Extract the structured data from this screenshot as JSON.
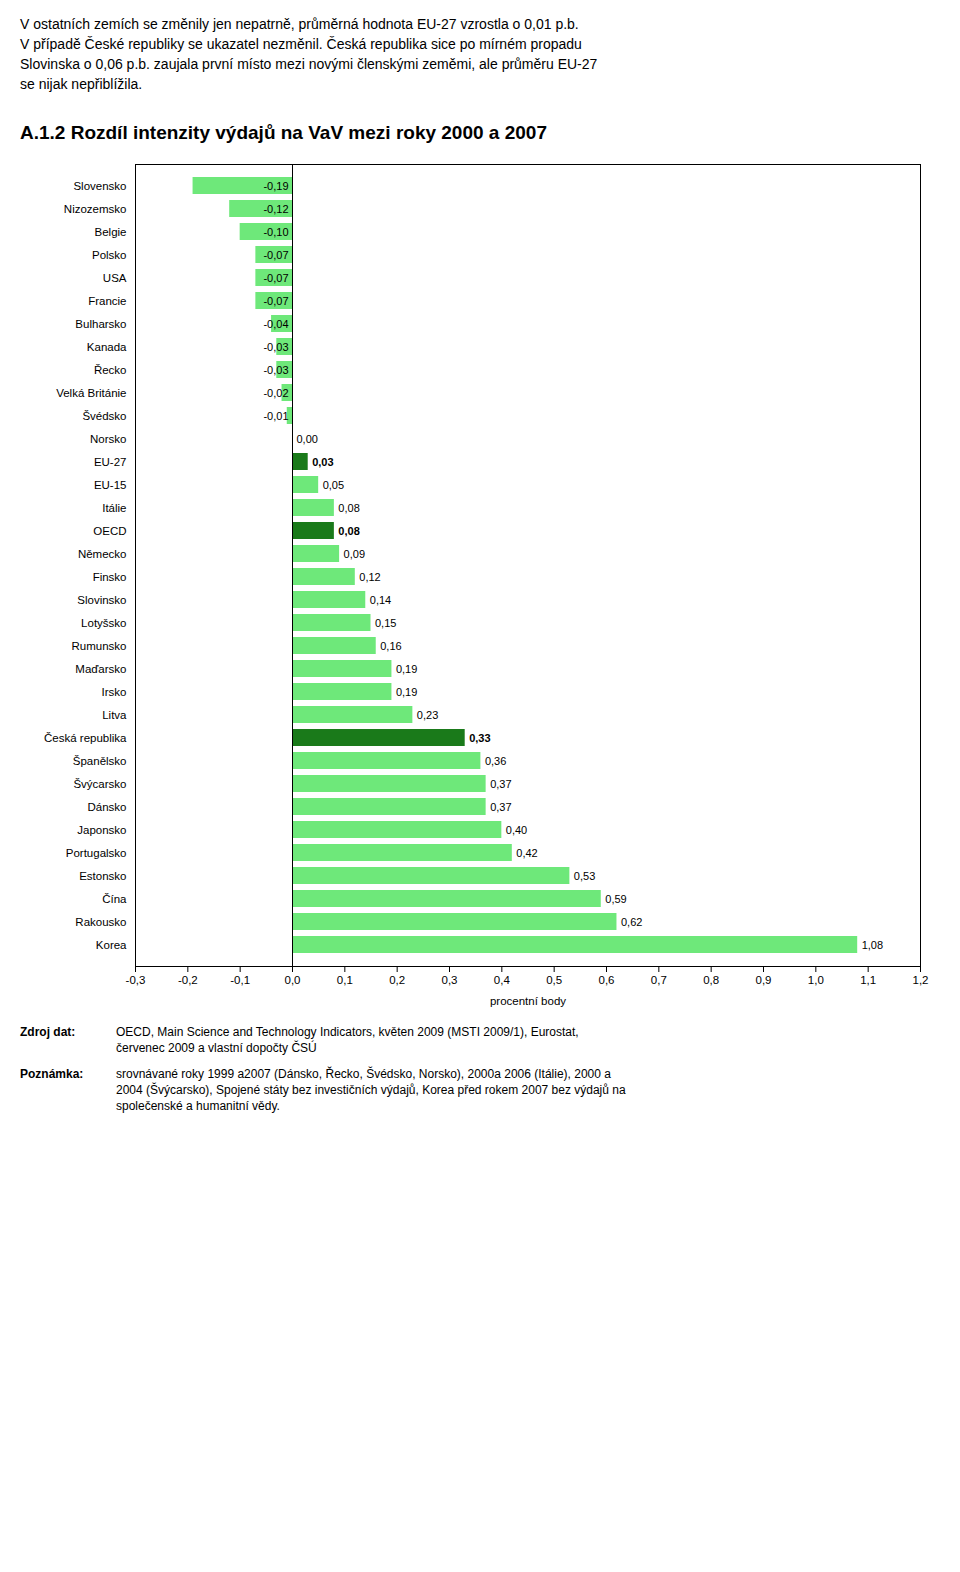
{
  "chart_data": {
    "type": "bar",
    "orientation": "horizontal",
    "title": "A.1.2 Rozdíl intenzity výdajů na VaV mezi roky 2000 a 2007",
    "header_text": [
      "V ostatních zemích se změnily jen nepatrně, průměrná hodnota EU-27 vzrostla o 0,01 p.b.",
      "V případě České republiky se ukazatel nezměnil. Česká republika sice po mírném propadu",
      "Slovinska o 0,06 p.b. zaujala první místo mezi novými členskými zeměmi, ale průměru EU-27",
      "se nijak nepřiblížila."
    ],
    "xlabel": "procentní body",
    "categories": [
      "Slovensko",
      "Nizozemsko",
      "Belgie",
      "Polsko",
      "USA",
      "Francie",
      "Bulharsko",
      "Kanada",
      "Řecko",
      "Velká Británie",
      "Švédsko",
      "Norsko",
      "EU-27",
      "EU-15",
      "Itálie",
      "OECD",
      "Německo",
      "Finsko",
      "Slovinsko",
      "Lotyšsko",
      "Rumunsko",
      "Maďarsko",
      "Irsko",
      "Litva",
      "Česká republika",
      "Španělsko",
      "Švýcarsko",
      "Dánsko",
      "Japonsko",
      "Portugalsko",
      "Estonsko",
      "Čína",
      "Rakousko",
      "Korea"
    ],
    "values": [
      -0.19,
      -0.12,
      -0.1,
      -0.07,
      -0.07,
      -0.07,
      -0.04,
      -0.03,
      -0.03,
      -0.02,
      -0.01,
      0.0,
      0.03,
      0.05,
      0.08,
      0.08,
      0.09,
      0.12,
      0.14,
      0.15,
      0.16,
      0.19,
      0.19,
      0.23,
      0.33,
      0.36,
      0.37,
      0.37,
      0.4,
      0.42,
      0.53,
      0.59,
      0.62,
      1.08
    ],
    "value_labels": [
      "-0,19",
      "-0,12",
      "-0,10",
      "-0,07",
      "-0,07",
      "-0,07",
      "-0,04",
      "-0,03",
      "-0,03",
      "-0,02",
      "-0,01",
      "0,00",
      "0,03",
      "0,05",
      "0,08",
      "0,08",
      "0,09",
      "0,12",
      "0,14",
      "0,15",
      "0,16",
      "0,19",
      "0,19",
      "0,23",
      "0,33",
      "0,36",
      "0,37",
      "0,37",
      "0,40",
      "0,42",
      "0,53",
      "0,59",
      "0,62",
      "1,08"
    ],
    "data_labels": true,
    "colors": [
      "#6EE87A",
      "#6EE87A",
      "#6EE87A",
      "#6EE87A",
      "#6EE87A",
      "#6EE87A",
      "#6EE87A",
      "#6EE87A",
      "#6EE87A",
      "#6EE87A",
      "#6EE87A",
      "#6EE87A",
      "#1A7A1A",
      "#6EE87A",
      "#6EE87A",
      "#1A7A1A",
      "#6EE87A",
      "#6EE87A",
      "#6EE87A",
      "#6EE87A",
      "#6EE87A",
      "#6EE87A",
      "#6EE87A",
      "#6EE87A",
      "#1A7A1A",
      "#6EE87A",
      "#6EE87A",
      "#6EE87A",
      "#6EE87A",
      "#6EE87A",
      "#6EE87A",
      "#6EE87A",
      "#6EE87A",
      "#6EE87A"
    ],
    "xlim": [
      -0.3,
      1.2
    ],
    "xticks": [
      {
        "value": -0.3,
        "label": "-0,3"
      },
      {
        "value": -0.2,
        "label": "-0,2"
      },
      {
        "value": -0.1,
        "label": "-0,1"
      },
      {
        "value": 0.0,
        "label": "0,0"
      },
      {
        "value": 0.1,
        "label": "0,1"
      },
      {
        "value": 0.2,
        "label": "0,2"
      },
      {
        "value": 0.3,
        "label": "0,3"
      },
      {
        "value": 0.4,
        "label": "0,4"
      },
      {
        "value": 0.5,
        "label": "0,5"
      },
      {
        "value": 0.6,
        "label": "0,6"
      },
      {
        "value": 0.7,
        "label": "0,7"
      },
      {
        "value": 0.8,
        "label": "0,8"
      },
      {
        "value": 0.9,
        "label": "0,9"
      },
      {
        "value": 1.0,
        "label": "1,0"
      },
      {
        "value": 1.1,
        "label": "1,1"
      },
      {
        "value": 1.2,
        "label": "1,2"
      }
    ],
    "grid": false,
    "source_label": "Zdroj dat:",
    "source_text": "OECD, Main Science and Technology Indicators, květen 2009 (MSTI 2009/1), Eurostat,\nčervenec 2009 a vlastní dopočty ČSÚ",
    "note_label": "Poznámka:",
    "note_text": "srovnávané roky 1999 a2007 (Dánsko, Řecko, Švédsko, Norsko), 2000a 2006 (Itálie), 2000 a\n2004 (Švýcarsko), Spojené státy bez investičních výdajů, Korea před rokem 2007 bez výdajů na\nspolečenské a humanitní vědy."
  }
}
